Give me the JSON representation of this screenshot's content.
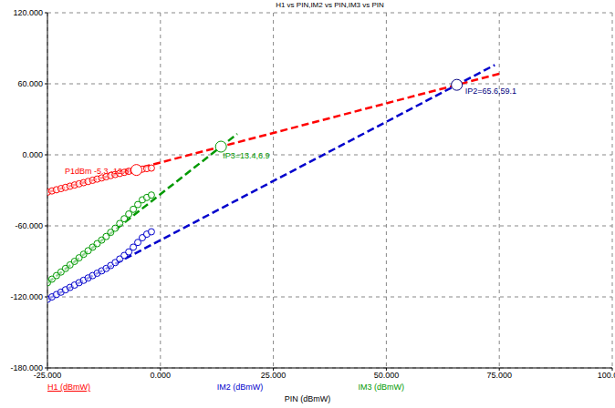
{
  "chart_data": {
    "type": "scatter",
    "title": "H1 vs PIN,IM2 vs PIN,IM3 vs PIN",
    "xlabel": "PIN (dBmW)",
    "xlim": [
      -25,
      100
    ],
    "ylim": [
      -180,
      120
    ],
    "xticks": [
      {
        "value": -25,
        "label": "-25.000"
      },
      {
        "value": 0,
        "label": "0.000"
      },
      {
        "value": 25,
        "label": "25.000"
      },
      {
        "value": 50,
        "label": "50.000"
      },
      {
        "value": 75,
        "label": "75.000"
      },
      {
        "value": 100,
        "label": "100.000"
      }
    ],
    "yticks": [
      {
        "value": -180,
        "label": "-180.000"
      },
      {
        "value": -120,
        "label": "-120.000"
      },
      {
        "value": -60,
        "label": "-60.000"
      },
      {
        "value": 0,
        "label": "0.000"
      },
      {
        "value": 60,
        "label": "60.000"
      },
      {
        "value": 120,
        "label": "120.000"
      }
    ],
    "grid": true,
    "legend": "bottom",
    "series": [
      {
        "name": "H1 (dBmW)",
        "color": "#ff0000",
        "marker": "circle",
        "x": [
          -25,
          -24,
          -23,
          -22,
          -21,
          -20,
          -19,
          -18,
          -17,
          -16,
          -15,
          -14,
          -13,
          -12,
          -11,
          -10,
          -9,
          -8,
          -7,
          -6,
          -5,
          -4,
          -3,
          -2
        ],
        "values": [
          -31.5,
          -30.5,
          -29.5,
          -28.5,
          -27.5,
          -26.5,
          -25.5,
          -24.5,
          -23.5,
          -22.5,
          -21.5,
          -20.5,
          -19.5,
          -18.5,
          -17.5,
          -16.6,
          -15.7,
          -14.8,
          -13.9,
          -13.3,
          -12.7,
          -12.1,
          -11.6,
          -11.2
        ],
        "fit": {
          "x": [
            -25,
            75
          ],
          "values": [
            -31.5,
            68.5
          ],
          "line_style": "dashed"
        }
      },
      {
        "name": "IM2 (dBmW)",
        "color": "#0000cc",
        "marker": "circle",
        "x": [
          -25,
          -24,
          -23,
          -22,
          -21,
          -20,
          -19,
          -18,
          -17,
          -16,
          -15,
          -14,
          -13,
          -12,
          -11,
          -10,
          -9,
          -8,
          -7,
          -6,
          -5,
          -4,
          -3,
          -2
        ],
        "values": [
          -122,
          -120,
          -118,
          -116,
          -114,
          -112,
          -110,
          -108,
          -106,
          -104,
          -102,
          -100,
          -98,
          -96,
          -93.5,
          -91,
          -88,
          -85,
          -82,
          -78,
          -74,
          -70,
          -67,
          -65
        ],
        "fit": {
          "x": [
            -25,
            74
          ],
          "values": [
            -122.1,
            75.9
          ],
          "line_style": "dashed"
        }
      },
      {
        "name": "IM3 (dBmW)",
        "color": "#009900",
        "marker": "circle",
        "x": [
          -25,
          -24,
          -23,
          -22,
          -21,
          -20,
          -19,
          -18,
          -17,
          -16,
          -15,
          -14,
          -13,
          -12,
          -11,
          -10,
          -9,
          -8,
          -7,
          -6,
          -5,
          -4,
          -3,
          -2
        ],
        "values": [
          -108,
          -105,
          -102,
          -99,
          -96,
          -93,
          -90,
          -87,
          -84,
          -81,
          -78,
          -75,
          -72,
          -69,
          -65.5,
          -62,
          -58,
          -54,
          -50,
          -46,
          -42,
          -38,
          -36,
          -34
        ],
        "fit": {
          "x": [
            -25,
            17
          ],
          "values": [
            -108.3,
            17.7
          ],
          "line_style": "dashed"
        }
      }
    ],
    "annotations": [
      {
        "text": "P1dBm -5.3,-12.8",
        "x": -5.3,
        "y": -12.8,
        "color": "#ff0000"
      },
      {
        "text": "IP3=13.4,6.9",
        "x": 13.4,
        "y": 6.9,
        "color": "#009900"
      },
      {
        "text": "IP2=65.6,59.1",
        "x": 65.6,
        "y": 59.1,
        "color": "#000080"
      }
    ]
  }
}
